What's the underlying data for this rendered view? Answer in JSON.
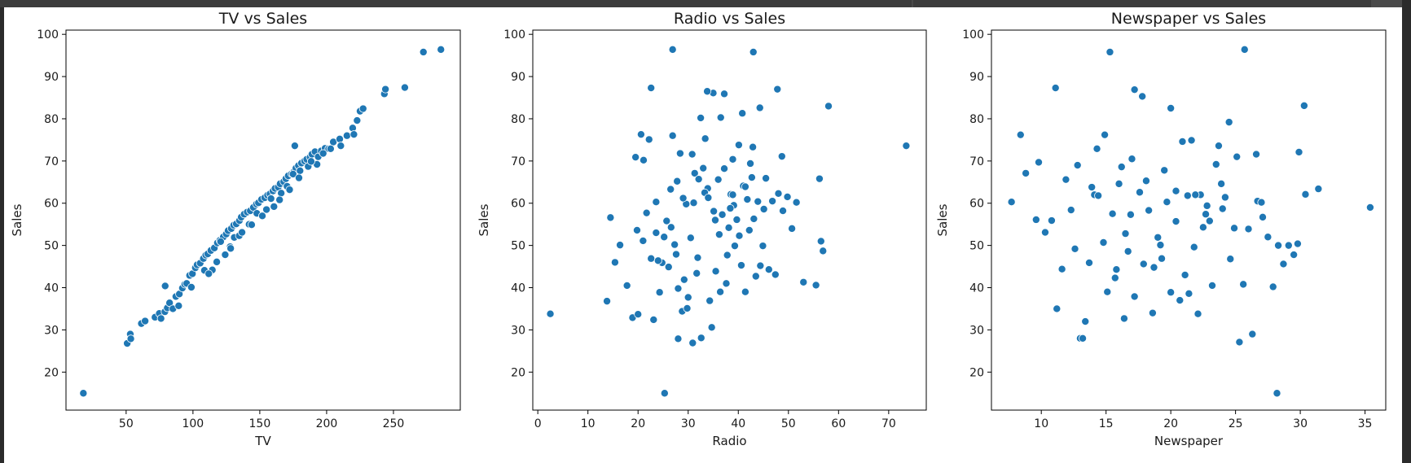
{
  "chart_data": [
    {
      "type": "scatter",
      "title": "TV vs Sales",
      "xlabel": "TV",
      "ylabel": "Sales",
      "xlim": [
        5,
        300
      ],
      "ylim": [
        11,
        101
      ],
      "xticks": [
        50,
        100,
        150,
        200,
        250
      ],
      "yticks": [
        20,
        30,
        40,
        50,
        60,
        70,
        80,
        90,
        100
      ],
      "color": "#1f77b4",
      "x": [
        18.0,
        50.8,
        53.1,
        53.5,
        61.4,
        64.2,
        71.6,
        74.8,
        76.1,
        79.0,
        80.8,
        82.5,
        85.0,
        87.2,
        89.8,
        92.1,
        93.9,
        95.3,
        97.5,
        99.6,
        101.8,
        103.1,
        105.4,
        107.8,
        109.6,
        111.1,
        113.4,
        116.0,
        118.3,
        120.1,
        122.7,
        124.9,
        126.3,
        128.7,
        130.5,
        132.4,
        134.8,
        136.1,
        138.3,
        140.6,
        142.9,
        145.2,
        147.5,
        149.0,
        151.3,
        153.7,
        155.8,
        157.6,
        159.9,
        161.4,
        163.8,
        165.2,
        167.9,
        169.5,
        171.3,
        173.8,
        175.4,
        177.0,
        178.9,
        181.2,
        183.5,
        185.1,
        187.6,
        189.0,
        191.3,
        193.7,
        196.0,
        198.8,
        201.5,
        205.0,
        209.8,
        215.2,
        219.5,
        222.8,
        225.0,
        227.3,
        243.2,
        244.0,
        258.5,
        272.4,
        285.5,
        117.8,
        124.1,
        130.9,
        134.6,
        142.0,
        147.8,
        155.0,
        160.6,
        166.0,
        170.4,
        174.9,
        180.1,
        186.2,
        192.8,
        197.4,
        203.0,
        210.6,
        220.4,
        98.8,
        108.6,
        114.5,
        120.7,
        127.8,
        136.7,
        143.9,
        151.9,
        158.4,
        164.8,
        172.3,
        179.3,
        188.4,
        89.3,
        79.2,
        111.8,
        128.2,
        176.2
      ],
      "y": [
        15.0,
        26.8,
        29.0,
        27.9,
        31.5,
        32.1,
        33.0,
        33.9,
        32.7,
        34.3,
        35.2,
        36.4,
        35.0,
        37.9,
        38.5,
        39.9,
        40.8,
        41.0,
        42.9,
        43.3,
        44.7,
        45.4,
        45.8,
        46.9,
        47.7,
        48.0,
        48.8,
        49.4,
        50.6,
        51.2,
        52.0,
        52.7,
        53.5,
        54.0,
        54.8,
        55.1,
        55.9,
        56.7,
        57.4,
        57.9,
        58.2,
        59.0,
        59.8,
        60.1,
        60.9,
        61.3,
        61.9,
        62.2,
        62.9,
        63.5,
        63.8,
        64.6,
        65.1,
        65.8,
        66.5,
        67.0,
        67.4,
        68.3,
        68.9,
        69.5,
        70.0,
        70.4,
        70.9,
        71.6,
        72.2,
        71.0,
        72.4,
        73.0,
        72.9,
        74.5,
        75.2,
        76.0,
        77.8,
        79.6,
        81.8,
        82.4,
        85.9,
        87.0,
        87.4,
        95.8,
        96.4,
        46.1,
        47.8,
        51.9,
        52.3,
        55.0,
        57.6,
        58.5,
        59.2,
        62.4,
        64.0,
        66.9,
        67.7,
        68.7,
        69.2,
        71.8,
        72.9,
        73.6,
        76.3,
        40.1,
        44.1,
        44.2,
        50.9,
        49.7,
        53.1,
        54.9,
        57.0,
        61.1,
        60.8,
        63.2,
        66.0,
        69.9,
        35.7,
        40.4,
        43.3,
        49.3,
        73.6
      ]
    },
    {
      "type": "scatter",
      "title": "Radio vs Sales",
      "xlabel": "Radio",
      "ylabel": "Sales",
      "xlim": [
        -1,
        77.5
      ],
      "ylim": [
        11,
        101
      ],
      "xticks": [
        0,
        10,
        20,
        30,
        40,
        50,
        60,
        70
      ],
      "yticks": [
        20,
        30,
        40,
        50,
        60,
        70,
        80,
        90,
        100
      ],
      "color": "#1f77b4",
      "x": [
        2.5,
        13.8,
        14.5,
        15.4,
        16.4,
        17.8,
        18.9,
        19.5,
        20.0,
        20.6,
        21.0,
        21.7,
        22.2,
        22.6,
        23.1,
        23.6,
        24.3,
        24.8,
        25.2,
        25.7,
        26.1,
        26.5,
        26.9,
        27.3,
        27.6,
        28.0,
        28.4,
        28.8,
        29.2,
        29.6,
        30.0,
        30.5,
        30.9,
        31.3,
        31.7,
        32.1,
        32.6,
        33.0,
        33.4,
        33.9,
        34.3,
        34.7,
        35.1,
        35.5,
        36.0,
        36.4,
        36.8,
        37.2,
        37.6,
        38.1,
        38.5,
        38.9,
        39.3,
        39.7,
        40.1,
        40.6,
        41.0,
        41.4,
        41.8,
        42.2,
        42.7,
        43.1,
        43.5,
        43.9,
        44.4,
        44.9,
        45.5,
        46.1,
        46.8,
        47.4,
        48.0,
        48.9,
        49.8,
        50.7,
        51.6,
        53.0,
        55.5,
        56.2,
        56.5,
        56.9,
        58.0,
        73.5,
        26.9,
        43.0,
        22.6,
        35.0,
        37.2,
        42.9,
        47.8,
        25.3,
        28.0,
        30.8,
        32.5,
        36.5,
        39.1,
        44.3,
        29.0,
        33.3,
        37.8,
        40.2,
        23.6,
        27.8,
        31.1,
        35.4,
        26.6,
        31.9,
        38.4,
        21.1,
        45.1,
        41.4,
        34.0,
        24.0,
        29.8,
        36.2,
        40.8,
        19.8,
        42.4,
        48.7,
        33.8,
        38.9
      ],
      "y": [
        33.8,
        36.8,
        56.6,
        46.0,
        50.1,
        40.5,
        32.9,
        70.9,
        33.7,
        76.3,
        51.1,
        57.7,
        75.1,
        46.9,
        32.4,
        60.3,
        38.9,
        45.9,
        52.0,
        55.8,
        44.9,
        63.3,
        76.0,
        50.2,
        47.9,
        39.8,
        71.8,
        34.4,
        41.9,
        59.8,
        37.7,
        51.8,
        26.9,
        67.1,
        43.4,
        65.7,
        28.1,
        68.3,
        75.3,
        63.5,
        36.9,
        30.6,
        58.1,
        43.9,
        65.6,
        39.0,
        57.3,
        68.2,
        41.0,
        54.2,
        62.1,
        70.4,
        49.9,
        56.1,
        73.8,
        45.3,
        64.1,
        39.0,
        60.9,
        53.6,
        66.1,
        56.3,
        42.7,
        60.4,
        45.2,
        49.9,
        65.9,
        44.3,
        60.5,
        43.1,
        62.3,
        58.2,
        61.5,
        54.0,
        60.2,
        41.3,
        40.6,
        65.8,
        51.0,
        48.7,
        83.0,
        73.6,
        96.4,
        95.8,
        87.3,
        86.1,
        85.9,
        73.3,
        87.0,
        15.0,
        27.9,
        71.6,
        80.2,
        80.3,
        59.5,
        82.6,
        61.2,
        62.5,
        47.7,
        52.3,
        53.0,
        65.2,
        60.1,
        56.0,
        54.3,
        47.1,
        58.8,
        70.2,
        58.6,
        63.9,
        61.3,
        46.4,
        35.1,
        52.6,
        81.3,
        53.6,
        69.4,
        71.1,
        86.5,
        62.0
      ]
    },
    {
      "type": "scatter",
      "title": "Newspaper vs Sales",
      "xlabel": "Newspaper",
      "ylabel": "Sales",
      "xlim": [
        6.15,
        36.6
      ],
      "ylim": [
        11,
        101
      ],
      "xticks": [
        10,
        15,
        20,
        25,
        30,
        35
      ],
      "yticks": [
        20,
        30,
        40,
        50,
        60,
        70,
        80,
        90,
        100
      ],
      "color": "#1f77b4",
      "x": [
        7.7,
        8.4,
        8.8,
        9.6,
        9.8,
        10.3,
        10.8,
        11.2,
        11.6,
        11.9,
        12.3,
        12.6,
        13.0,
        13.4,
        13.7,
        14.1,
        14.4,
        14.8,
        15.1,
        15.5,
        15.8,
        16.2,
        16.5,
        16.9,
        17.2,
        17.6,
        17.9,
        18.3,
        18.6,
        19.0,
        19.3,
        19.7,
        20.0,
        20.4,
        20.7,
        21.1,
        21.4,
        21.8,
        22.1,
        22.5,
        22.8,
        23.2,
        23.5,
        23.9,
        24.2,
        24.6,
        24.9,
        25.3,
        25.6,
        26.0,
        26.3,
        26.7,
        27.1,
        27.5,
        27.9,
        28.3,
        28.7,
        29.1,
        29.5,
        29.9,
        30.3,
        31.4,
        35.4,
        15.3,
        25.7,
        11.1,
        17.2,
        20.0,
        26.6,
        28.2,
        29.8,
        13.2,
        16.4,
        18.7,
        21.6,
        24.5,
        12.8,
        14.9,
        19.5,
        22.7,
        17.8,
        23.7,
        16.0,
        20.9,
        25.1,
        19.2,
        21.3,
        14.3,
        17.0,
        22.3,
        24.0,
        18.1,
        15.7,
        27.0,
        30.4,
        20.4,
        13.9,
        23.0,
        21.9,
        16.7
      ],
      "y": [
        60.3,
        76.2,
        67.1,
        56.1,
        69.7,
        53.1,
        55.9,
        35.0,
        44.4,
        65.6,
        58.4,
        49.2,
        28.0,
        32.0,
        45.9,
        62.0,
        61.8,
        50.7,
        39.0,
        57.5,
        44.3,
        68.6,
        52.8,
        57.3,
        37.9,
        62.6,
        45.6,
        58.3,
        34.0,
        51.9,
        46.9,
        60.3,
        38.9,
        55.7,
        37.0,
        43.0,
        38.6,
        49.6,
        33.8,
        54.3,
        59.4,
        40.5,
        69.2,
        64.6,
        61.4,
        46.8,
        54.1,
        27.1,
        40.8,
        53.9,
        29.0,
        60.5,
        56.7,
        52.0,
        40.2,
        50.0,
        45.6,
        50.0,
        47.8,
        72.1,
        83.1,
        63.4,
        59.0,
        95.8,
        96.4,
        87.3,
        86.9,
        82.5,
        71.6,
        15.0,
        50.4,
        28.0,
        32.7,
        44.8,
        74.9,
        79.2,
        69.0,
        76.2,
        67.8,
        57.4,
        85.3,
        73.6,
        64.6,
        74.6,
        71.0,
        50.1,
        61.8,
        72.9,
        70.5,
        62.0,
        58.7,
        65.3,
        42.3,
        60.2,
        62.1,
        62.9,
        63.8,
        55.8,
        62.0,
        48.6
      ]
    }
  ]
}
